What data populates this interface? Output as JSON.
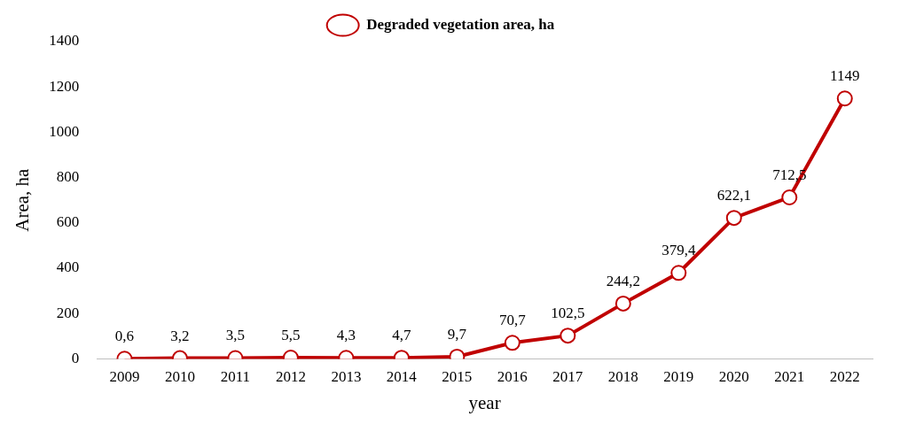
{
  "chart_data": {
    "type": "line",
    "x_label": "year",
    "y_label": "Area, ha",
    "categories": [
      "2009",
      "2010",
      "2011",
      "2012",
      "2013",
      "2014",
      "2015",
      "2016",
      "2017",
      "2018",
      "2019",
      "2020",
      "2021",
      "2022"
    ],
    "series": [
      {
        "name": "Degraded vegetation area, ha",
        "color": "#c00000",
        "marker": "circle",
        "line_style": "solid",
        "values": [
          0.6,
          3.2,
          3.5,
          5.5,
          4.3,
          4.7,
          9.7,
          70.7,
          102.5,
          244.2,
          379.4,
          622.1,
          712.5,
          1149
        ],
        "value_labels": [
          "0,6",
          "3,2",
          "3,5",
          "5,5",
          "4,3",
          "4,7",
          "9,7",
          "70,7",
          "102,5",
          "244,2",
          "379,4",
          "622,1",
          "712,5",
          "1149"
        ]
      }
    ],
    "ylim": [
      0,
      1400
    ],
    "yticks": [
      0,
      200,
      400,
      600,
      800,
      1000,
      1200,
      1400
    ],
    "grid": false,
    "legend": "top",
    "data_labels": true
  }
}
